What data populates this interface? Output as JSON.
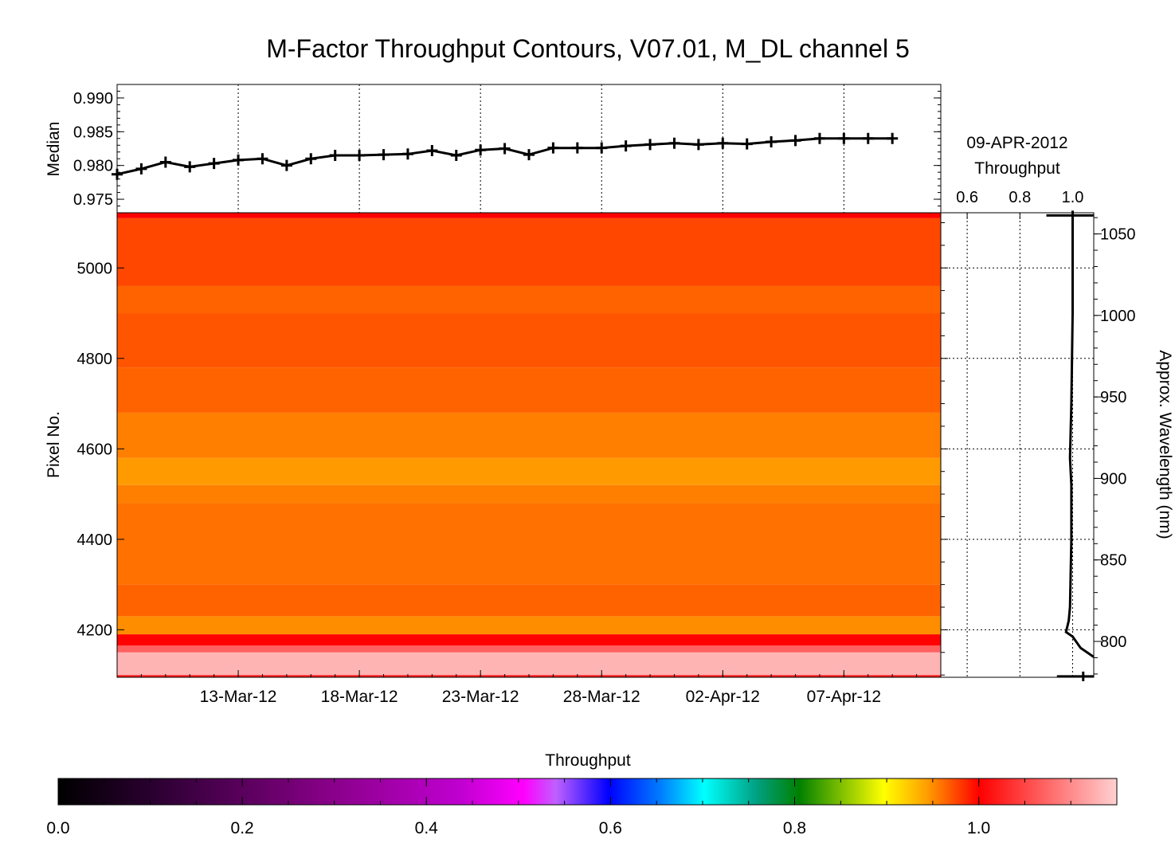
{
  "title": "M-Factor Throughput Contours, V07.01, M_DL channel 5",
  "colors": {
    "line": "#000000",
    "background": "#ffffff",
    "grid": "#000000"
  },
  "chart_data": [
    {
      "type": "line",
      "name": "median-panel",
      "ylabel": "Median",
      "ylim": [
        0.973,
        0.992
      ],
      "yticks": [
        0.975,
        0.98,
        0.985,
        0.99
      ],
      "ytick_labels": [
        "0.975",
        "0.980",
        "0.985",
        "0.990"
      ],
      "xlim": [
        "2012-03-08",
        "2012-04-11"
      ],
      "vgrid_dates": [
        "2012-03-13",
        "2012-03-18",
        "2012-03-23",
        "2012-03-28",
        "2012-04-02",
        "2012-04-07"
      ],
      "grid": "dotted vertical",
      "x": [
        "2012-03-08",
        "2012-03-09",
        "2012-03-10",
        "2012-03-11",
        "2012-03-12",
        "2012-03-13",
        "2012-03-14",
        "2012-03-15",
        "2012-03-16",
        "2012-03-17",
        "2012-03-18",
        "2012-03-19",
        "2012-03-20",
        "2012-03-21",
        "2012-03-22",
        "2012-03-23",
        "2012-03-24",
        "2012-03-25",
        "2012-03-26",
        "2012-03-27",
        "2012-03-28",
        "2012-03-29",
        "2012-03-30",
        "2012-03-31",
        "2012-04-01",
        "2012-04-02",
        "2012-04-03",
        "2012-04-04",
        "2012-04-05",
        "2012-04-06",
        "2012-04-07",
        "2012-04-08",
        "2012-04-09"
      ],
      "values": [
        0.9787,
        0.9795,
        0.9805,
        0.9798,
        0.9803,
        0.9808,
        0.981,
        0.98,
        0.981,
        0.9815,
        0.9815,
        0.9816,
        0.9817,
        0.9822,
        0.9815,
        0.9823,
        0.9825,
        0.9816,
        0.9826,
        0.9826,
        0.9826,
        0.9829,
        0.9831,
        0.9833,
        0.9831,
        0.9833,
        0.9832,
        0.9835,
        0.9837,
        0.984,
        0.984,
        0.984,
        0.984
      ]
    },
    {
      "type": "heatmap",
      "name": "throughput-contours",
      "ylabel": "Pixel No.",
      "ylim": [
        4095,
        5122
      ],
      "yticks": [
        4200,
        4400,
        4600,
        4800,
        5000
      ],
      "ytick_labels": [
        "4200",
        "4400",
        "4600",
        "4800",
        "5000"
      ],
      "xlim": [
        "2012-03-08",
        "2012-04-11"
      ],
      "xticks": [
        "2012-03-13",
        "2012-03-18",
        "2012-03-23",
        "2012-03-28",
        "2012-04-02",
        "2012-04-07"
      ],
      "xtick_labels": [
        "13-Mar-12",
        "18-Mar-12",
        "23-Mar-12",
        "28-Mar-12",
        "02-Apr-12",
        "07-Apr-12"
      ],
      "bands": [
        {
          "from": 4095,
          "to": 4100,
          "value": 1.02
        },
        {
          "from": 4100,
          "to": 4150,
          "value": 1.13
        },
        {
          "from": 4150,
          "to": 4165,
          "value": 1.07
        },
        {
          "from": 4165,
          "to": 4190,
          "value": 1.0
        },
        {
          "from": 4190,
          "to": 4230,
          "value": 0.95
        },
        {
          "from": 4230,
          "to": 4300,
          "value": 0.965
        },
        {
          "from": 4300,
          "to": 4480,
          "value": 0.96
        },
        {
          "from": 4480,
          "to": 4520,
          "value": 0.955
        },
        {
          "from": 4520,
          "to": 4580,
          "value": 0.945
        },
        {
          "from": 4580,
          "to": 4680,
          "value": 0.955
        },
        {
          "from": 4680,
          "to": 4780,
          "value": 0.965
        },
        {
          "from": 4780,
          "to": 4900,
          "value": 0.97
        },
        {
          "from": 4900,
          "to": 4960,
          "value": 0.965
        },
        {
          "from": 4960,
          "to": 5110,
          "value": 0.975
        },
        {
          "from": 5110,
          "to": 5122,
          "value": 1.0
        }
      ]
    },
    {
      "type": "line",
      "name": "throughput-profile",
      "date": "09-APR-2012",
      "xlabel": "Throughput",
      "xlim": [
        0.5,
        1.08
      ],
      "xticks": [
        0.6,
        0.8,
        1.0
      ],
      "xtick_labels": [
        "0.6",
        "0.8",
        "1.0"
      ],
      "ylabel_right": "Approx. Wavelength (nm)",
      "wavelength_ticks": [
        800,
        850,
        900,
        950,
        1000,
        1050
      ],
      "wavelength_tick_labels": [
        "800",
        "850",
        "900",
        "950",
        "1000",
        "1050"
      ],
      "wavelength_range": [
        778,
        1063
      ],
      "grid": "dotted",
      "points": [
        {
          "pixel": 5118,
          "throughput": 1.0
        },
        {
          "pixel": 5050,
          "throughput": 1.0
        },
        {
          "pixel": 4900,
          "throughput": 1.0
        },
        {
          "pixel": 4700,
          "throughput": 0.995
        },
        {
          "pixel": 4580,
          "throughput": 0.99
        },
        {
          "pixel": 4520,
          "throughput": 0.995
        },
        {
          "pixel": 4400,
          "throughput": 0.995
        },
        {
          "pixel": 4250,
          "throughput": 0.99
        },
        {
          "pixel": 4220,
          "throughput": 0.985
        },
        {
          "pixel": 4195,
          "throughput": 0.975
        },
        {
          "pixel": 4185,
          "throughput": 1.0
        },
        {
          "pixel": 4160,
          "throughput": 1.03
        },
        {
          "pixel": 4140,
          "throughput": 1.08
        }
      ],
      "ticks_marks": [
        {
          "pixel": 5116,
          "throughput": 1.0
        },
        {
          "pixel": 4097,
          "throughput": 1.04
        }
      ]
    }
  ],
  "colorbar": {
    "label": "Throughput",
    "range": [
      0.0,
      1.15
    ],
    "tick_labels": [
      "0.0",
      "0.2",
      "0.4",
      "0.6",
      "0.8",
      "1.0"
    ]
  }
}
